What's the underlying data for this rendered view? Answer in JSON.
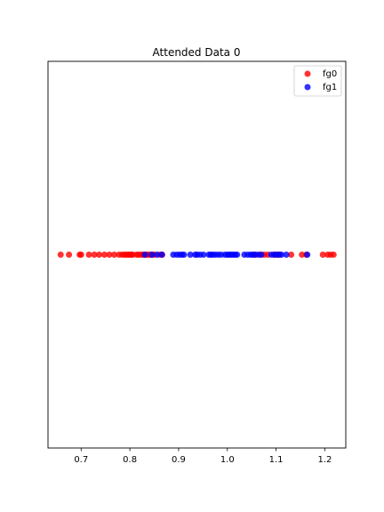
{
  "chart_data": {
    "type": "scatter",
    "title": "Attended Data 0",
    "xlabel": "",
    "ylabel": "",
    "xlim": [
      0.632,
      1.243
    ],
    "ylim": [
      -1,
      1
    ],
    "grid": false,
    "legend": "top-right",
    "x_ticks": [
      "0.7",
      "0.8",
      "0.9",
      "1.0",
      "1.1",
      "1.2"
    ],
    "series": [
      {
        "name": "fg0",
        "color": "#ff0000",
        "y": 0,
        "x": [
          0.658,
          0.675,
          0.697,
          0.7,
          0.716,
          0.727,
          0.737,
          0.748,
          0.758,
          0.768,
          0.778,
          0.784,
          0.789,
          0.793,
          0.797,
          0.8,
          0.803,
          0.806,
          0.814,
          0.818,
          0.823,
          0.827,
          0.83,
          0.834,
          0.838,
          0.842,
          0.846,
          0.85,
          0.862,
          0.866,
          1.056,
          1.068,
          1.076,
          1.083,
          1.096,
          1.1,
          1.104,
          1.131,
          1.153,
          1.162,
          1.196,
          1.206,
          1.212,
          1.218
        ]
      },
      {
        "name": "fg1",
        "color": "#0000ff",
        "y": 0,
        "x": [
          0.831,
          0.845,
          0.856,
          0.866,
          0.889,
          0.896,
          0.902,
          0.907,
          0.911,
          0.924,
          0.934,
          0.938,
          0.944,
          0.951,
          0.962,
          0.966,
          0.97,
          0.975,
          0.981,
          0.987,
          0.995,
          1.0,
          1.004,
          1.008,
          1.012,
          1.016,
          1.02,
          1.035,
          1.042,
          1.048,
          1.052,
          1.057,
          1.063,
          1.07,
          1.09,
          1.096,
          1.102,
          1.107,
          1.111,
          1.121,
          1.164
        ]
      }
    ]
  }
}
